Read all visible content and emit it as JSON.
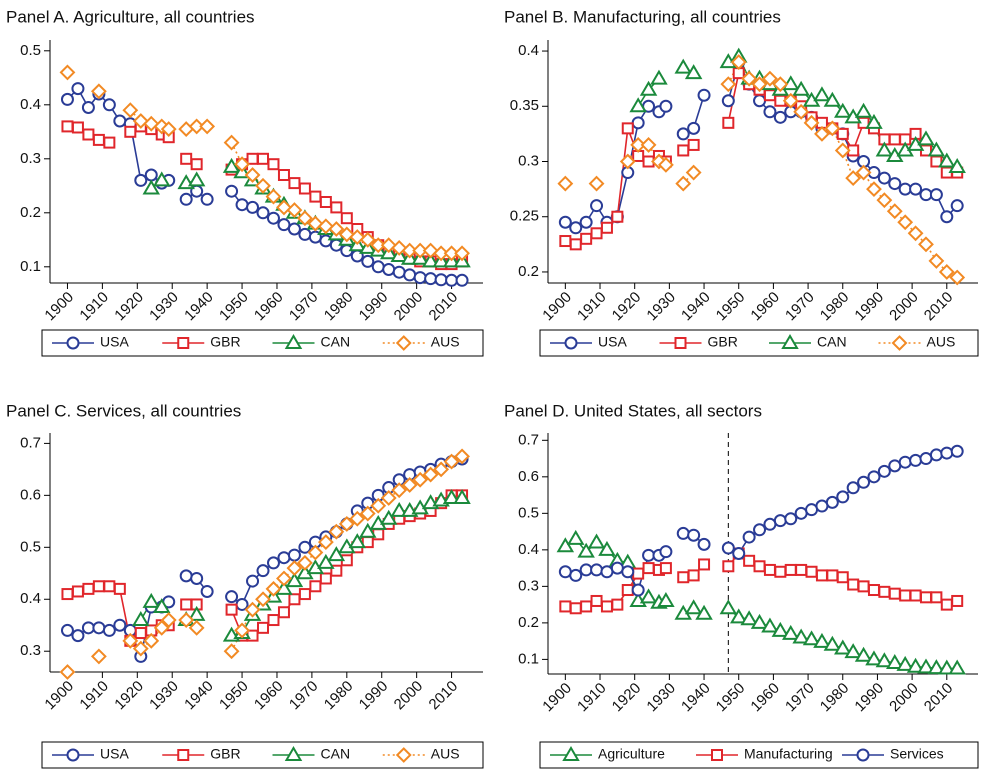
{
  "chart_data": [
    {
      "type": "line",
      "title": "Panel A. Agriculture, all countries",
      "legend": "bottom",
      "x": [
        1900,
        1903,
        1906,
        1909,
        1912,
        1915,
        1918,
        1921,
        1924,
        1927,
        1929,
        1932,
        1934,
        1937,
        1940,
        1943,
        1947,
        1950,
        1953,
        1956,
        1959,
        1962,
        1965,
        1968,
        1971,
        1974,
        1977,
        1980,
        1983,
        1986,
        1989,
        1992,
        1995,
        1998,
        2001,
        2004,
        2007,
        2010,
        2013
      ],
      "xlim": [
        1895,
        2019
      ],
      "xticks": [
        1900,
        1910,
        1920,
        1930,
        1940,
        1950,
        1960,
        1970,
        1980,
        1990,
        2000,
        2010
      ],
      "ylim": [
        0.07,
        0.52
      ],
      "yticks": [
        0.1,
        0.2,
        0.3,
        0.4,
        0.5
      ],
      "series": [
        {
          "name": "USA",
          "color": "#2a3c96",
          "marker": "circle",
          "style": "solid",
          "values": [
            0.41,
            0.43,
            0.395,
            0.42,
            0.4,
            0.37,
            0.365,
            0.26,
            0.27,
            0.255,
            0.26,
            null,
            0.225,
            0.24,
            0.225,
            null,
            0.24,
            0.215,
            0.21,
            0.2,
            0.19,
            0.178,
            0.17,
            0.16,
            0.155,
            0.148,
            0.14,
            0.13,
            0.12,
            0.11,
            0.1,
            0.095,
            0.09,
            0.085,
            0.08,
            0.078,
            0.076,
            0.075,
            0.075
          ]
        },
        {
          "name": "GBR",
          "color": "#e0262b",
          "marker": "square",
          "style": "solid",
          "values": [
            0.36,
            0.358,
            0.345,
            0.335,
            0.33,
            null,
            0.35,
            0.36,
            0.355,
            0.345,
            0.34,
            null,
            0.3,
            0.29,
            null,
            null,
            0.28,
            0.29,
            0.3,
            0.3,
            0.29,
            0.27,
            0.255,
            0.245,
            0.23,
            0.22,
            0.21,
            0.19,
            0.17,
            0.155,
            0.14,
            0.13,
            0.12,
            0.115,
            0.11,
            0.11,
            0.105,
            0.105,
            0.11
          ]
        },
        {
          "name": "CAN",
          "color": "#1b8a3c",
          "marker": "triangle",
          "style": "solid",
          "values": [
            null,
            null,
            null,
            null,
            null,
            null,
            null,
            null,
            0.245,
            0.26,
            null,
            null,
            0.255,
            0.26,
            null,
            null,
            0.285,
            0.275,
            0.26,
            0.245,
            0.23,
            0.215,
            0.2,
            0.19,
            0.18,
            0.17,
            0.16,
            0.15,
            0.14,
            0.135,
            0.13,
            0.125,
            0.12,
            0.115,
            0.115,
            0.11,
            0.11,
            0.11,
            0.11
          ]
        },
        {
          "name": "AUS",
          "color": "#f28a24",
          "marker": "diamond",
          "style": "dotted",
          "values": [
            0.46,
            null,
            null,
            0.425,
            null,
            null,
            0.39,
            0.37,
            0.365,
            0.36,
            0.355,
            null,
            0.355,
            0.36,
            0.36,
            null,
            0.33,
            0.29,
            0.27,
            0.25,
            0.23,
            0.21,
            0.205,
            0.19,
            0.18,
            0.175,
            0.17,
            0.16,
            0.155,
            0.15,
            0.14,
            0.14,
            0.135,
            0.13,
            0.13,
            0.13,
            0.125,
            0.125,
            0.125
          ]
        }
      ]
    },
    {
      "type": "line",
      "title": "Panel B. Manufacturing, all countries",
      "legend": "bottom",
      "x": [
        1900,
        1903,
        1906,
        1909,
        1912,
        1915,
        1918,
        1921,
        1924,
        1927,
        1929,
        1932,
        1934,
        1937,
        1940,
        1943,
        1947,
        1950,
        1953,
        1956,
        1959,
        1962,
        1965,
        1968,
        1971,
        1974,
        1977,
        1980,
        1983,
        1986,
        1989,
        1992,
        1995,
        1998,
        2001,
        2004,
        2007,
        2010,
        2013
      ],
      "xlim": [
        1895,
        2019
      ],
      "xticks": [
        1900,
        1910,
        1920,
        1930,
        1940,
        1950,
        1960,
        1970,
        1980,
        1990,
        2000,
        2010
      ],
      "ylim": [
        0.19,
        0.41
      ],
      "yticks": [
        0.2,
        0.25,
        0.3,
        0.35,
        0.4
      ],
      "series": [
        {
          "name": "USA",
          "color": "#2a3c96",
          "marker": "circle",
          "style": "solid",
          "values": [
            0.245,
            0.24,
            0.245,
            0.26,
            0.245,
            0.25,
            0.29,
            0.335,
            0.35,
            0.345,
            0.35,
            null,
            0.325,
            0.33,
            0.36,
            null,
            0.355,
            0.39,
            0.37,
            0.355,
            0.345,
            0.34,
            0.345,
            0.345,
            0.34,
            0.33,
            0.33,
            0.325,
            0.305,
            0.3,
            0.29,
            0.285,
            0.28,
            0.275,
            0.275,
            0.27,
            0.27,
            0.25,
            0.26
          ]
        },
        {
          "name": "GBR",
          "color": "#e0262b",
          "marker": "square",
          "style": "solid",
          "values": [
            0.228,
            0.225,
            0.23,
            0.235,
            0.24,
            0.25,
            0.33,
            0.305,
            0.3,
            0.305,
            0.3,
            null,
            0.31,
            0.315,
            null,
            null,
            0.335,
            0.38,
            0.37,
            0.365,
            0.36,
            0.355,
            0.355,
            0.35,
            0.34,
            0.335,
            0.33,
            0.325,
            0.31,
            0.335,
            0.33,
            0.32,
            0.32,
            0.32,
            0.325,
            0.31,
            0.3,
            0.29,
            0.29
          ]
        },
        {
          "name": "CAN",
          "color": "#1b8a3c",
          "marker": "triangle",
          "style": "solid",
          "values": [
            null,
            null,
            null,
            null,
            null,
            null,
            null,
            0.35,
            0.365,
            0.375,
            null,
            null,
            0.385,
            0.38,
            null,
            null,
            0.39,
            0.395,
            0.375,
            0.375,
            0.37,
            0.365,
            0.37,
            0.365,
            0.355,
            0.36,
            0.355,
            0.345,
            0.34,
            0.345,
            0.335,
            0.31,
            0.305,
            0.31,
            0.315,
            0.32,
            0.31,
            0.3,
            0.295
          ]
        },
        {
          "name": "AUS",
          "color": "#f28a24",
          "marker": "diamond",
          "style": "dotted",
          "values": [
            0.28,
            null,
            null,
            0.28,
            null,
            null,
            0.3,
            0.315,
            0.315,
            0.3,
            0.297,
            null,
            0.28,
            0.29,
            null,
            null,
            0.37,
            0.39,
            0.375,
            0.37,
            0.375,
            0.37,
            0.355,
            0.345,
            0.335,
            0.325,
            0.33,
            0.31,
            0.285,
            0.29,
            0.275,
            0.265,
            0.255,
            0.245,
            0.235,
            0.225,
            0.21,
            0.2,
            0.195
          ]
        }
      ]
    },
    {
      "type": "line",
      "title": "Panel C. Services, all countries",
      "legend": "bottom",
      "x": [
        1900,
        1903,
        1906,
        1909,
        1912,
        1915,
        1918,
        1921,
        1924,
        1927,
        1929,
        1932,
        1934,
        1937,
        1940,
        1943,
        1947,
        1950,
        1953,
        1956,
        1959,
        1962,
        1965,
        1968,
        1971,
        1974,
        1977,
        1980,
        1983,
        1986,
        1989,
        1992,
        1995,
        1998,
        2001,
        2004,
        2007,
        2010,
        2013
      ],
      "xlim": [
        1895,
        2019
      ],
      "xticks": [
        1900,
        1910,
        1920,
        1930,
        1940,
        1950,
        1960,
        1970,
        1980,
        1990,
        2000,
        2010
      ],
      "ylim": [
        0.26,
        0.72
      ],
      "yticks": [
        0.3,
        0.4,
        0.5,
        0.6,
        0.7
      ],
      "series": [
        {
          "name": "USA",
          "color": "#2a3c96",
          "marker": "circle",
          "style": "solid",
          "values": [
            0.34,
            0.33,
            0.345,
            0.345,
            0.34,
            0.35,
            0.34,
            0.29,
            0.385,
            0.385,
            0.395,
            null,
            0.445,
            0.44,
            0.415,
            null,
            0.405,
            0.39,
            0.435,
            0.455,
            0.47,
            0.48,
            0.485,
            0.5,
            0.51,
            0.52,
            0.53,
            0.545,
            0.57,
            0.585,
            0.6,
            0.615,
            0.63,
            0.64,
            0.645,
            0.65,
            0.66,
            0.665,
            0.67
          ]
        },
        {
          "name": "GBR",
          "color": "#e0262b",
          "marker": "square",
          "style": "solid",
          "values": [
            0.41,
            0.415,
            0.42,
            0.425,
            0.425,
            0.42,
            0.32,
            0.335,
            0.34,
            0.35,
            0.35,
            null,
            0.39,
            0.39,
            null,
            null,
            0.38,
            0.33,
            0.33,
            0.345,
            0.36,
            0.375,
            0.4,
            0.41,
            0.425,
            0.44,
            0.455,
            0.475,
            0.5,
            0.51,
            0.525,
            0.545,
            0.555,
            0.56,
            0.565,
            0.57,
            0.585,
            0.6,
            0.6
          ]
        },
        {
          "name": "CAN",
          "color": "#1b8a3c",
          "marker": "triangle",
          "style": "solid",
          "values": [
            null,
            null,
            null,
            null,
            null,
            null,
            null,
            0.36,
            0.395,
            0.385,
            null,
            null,
            0.36,
            0.37,
            null,
            null,
            0.33,
            0.335,
            0.37,
            0.39,
            0.405,
            0.42,
            0.435,
            0.45,
            0.46,
            0.47,
            0.485,
            0.5,
            0.51,
            0.53,
            0.545,
            0.555,
            0.57,
            0.57,
            0.575,
            0.585,
            0.59,
            0.595,
            0.595
          ]
        },
        {
          "name": "AUS",
          "color": "#f28a24",
          "marker": "diamond",
          "style": "dotted",
          "values": [
            0.26,
            null,
            null,
            0.29,
            null,
            null,
            0.32,
            0.305,
            0.32,
            0.345,
            0.36,
            null,
            0.36,
            0.345,
            null,
            null,
            0.3,
            0.34,
            0.38,
            0.4,
            0.42,
            0.44,
            0.46,
            0.47,
            0.49,
            0.51,
            0.53,
            0.545,
            0.555,
            0.565,
            0.58,
            0.595,
            0.61,
            0.62,
            0.63,
            0.64,
            0.65,
            0.665,
            0.675
          ]
        }
      ]
    },
    {
      "type": "line",
      "title": "Panel D. United States, all sectors",
      "legend": "bottom",
      "vline": 1947,
      "x": [
        1900,
        1903,
        1906,
        1909,
        1912,
        1915,
        1918,
        1921,
        1924,
        1927,
        1929,
        1932,
        1934,
        1937,
        1940,
        1943,
        1947,
        1950,
        1953,
        1956,
        1959,
        1962,
        1965,
        1968,
        1971,
        1974,
        1977,
        1980,
        1983,
        1986,
        1989,
        1992,
        1995,
        1998,
        2001,
        2004,
        2007,
        2010,
        2013
      ],
      "xlim": [
        1895,
        2019
      ],
      "xticks": [
        1900,
        1910,
        1920,
        1930,
        1940,
        1950,
        1960,
        1970,
        1980,
        1990,
        2000,
        2010
      ],
      "ylim": [
        0.06,
        0.72
      ],
      "yticks": [
        0.1,
        0.2,
        0.3,
        0.4,
        0.5,
        0.6,
        0.7
      ],
      "series": [
        {
          "name": "Agriculture",
          "color": "#1b8a3c",
          "marker": "triangle",
          "style": "solid",
          "values": [
            0.41,
            0.43,
            0.395,
            0.42,
            0.4,
            0.37,
            0.365,
            0.26,
            0.27,
            0.255,
            0.26,
            null,
            0.225,
            0.24,
            0.225,
            null,
            0.24,
            0.215,
            0.21,
            0.2,
            0.19,
            0.178,
            0.17,
            0.16,
            0.155,
            0.148,
            0.14,
            0.13,
            0.12,
            0.11,
            0.1,
            0.095,
            0.09,
            0.085,
            0.08,
            0.078,
            0.076,
            0.075,
            0.075
          ]
        },
        {
          "name": "Manufacturing",
          "color": "#e0262b",
          "marker": "square",
          "style": "solid",
          "values": [
            0.245,
            0.24,
            0.245,
            0.26,
            0.245,
            0.25,
            0.29,
            0.335,
            0.35,
            0.345,
            0.35,
            null,
            0.325,
            0.33,
            0.36,
            null,
            0.355,
            0.39,
            0.37,
            0.355,
            0.345,
            0.34,
            0.345,
            0.345,
            0.34,
            0.33,
            0.33,
            0.325,
            0.305,
            0.3,
            0.29,
            0.285,
            0.28,
            0.275,
            0.275,
            0.27,
            0.27,
            0.25,
            0.26
          ]
        },
        {
          "name": "Services",
          "color": "#2a3c96",
          "marker": "circle",
          "style": "solid",
          "values": [
            0.34,
            0.33,
            0.345,
            0.345,
            0.34,
            0.35,
            0.34,
            0.29,
            0.385,
            0.385,
            0.395,
            null,
            0.445,
            0.44,
            0.415,
            null,
            0.405,
            0.39,
            0.435,
            0.455,
            0.47,
            0.48,
            0.485,
            0.5,
            0.51,
            0.52,
            0.53,
            0.545,
            0.57,
            0.585,
            0.6,
            0.615,
            0.63,
            0.64,
            0.645,
            0.65,
            0.66,
            0.665,
            0.67
          ]
        }
      ]
    }
  ]
}
